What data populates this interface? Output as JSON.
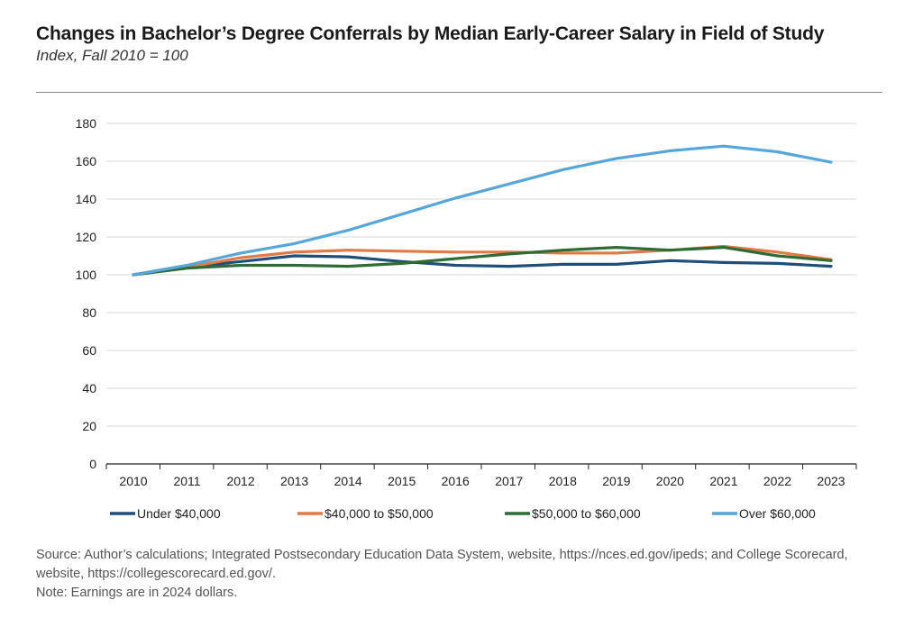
{
  "header": {
    "title": "Changes in Bachelor’s Degree Conferrals by Median Early-Career Salary in Field of Study",
    "subtitle": "Index, Fall 2010 = 100"
  },
  "footer": {
    "source": "Source: Author’s calculations; Integrated Postsecondary Education Data System, website, https://nces.ed.gov/ipeds; and College Scorecard, website, https://collegescorecard.ed.gov/.",
    "note": "Note: Earnings are in 2024 dollars."
  },
  "chart_data": {
    "type": "line",
    "title": "Changes in Bachelor’s Degree Conferrals by Median Early-Career Salary in Field of Study",
    "subtitle": "Index, Fall 2010 = 100",
    "xlabel": "",
    "ylabel": "",
    "x": [
      "2010",
      "2011",
      "2012",
      "2013",
      "2014",
      "2015",
      "2016",
      "2017",
      "2018",
      "2019",
      "2020",
      "2021",
      "2022",
      "2023"
    ],
    "ylim": [
      0,
      180
    ],
    "yticks": [
      0,
      20,
      40,
      60,
      80,
      100,
      120,
      140,
      160,
      180
    ],
    "grid": "horizontal",
    "legend_position": "bottom",
    "series": [
      {
        "name": "Under $40,000",
        "color": "#1f4e79",
        "values": [
          100,
          104,
          107,
          110,
          109.5,
          107,
          105,
          104.5,
          105.5,
          105.5,
          107.5,
          106.5,
          106,
          104.5
        ]
      },
      {
        "name": "$40,000 to $50,000",
        "color": "#e07b47",
        "values": [
          100,
          104,
          109,
          112,
          113,
          112.5,
          112,
          112,
          111.5,
          111.5,
          113,
          115,
          112,
          108
        ]
      },
      {
        "name": "$50,000 to $60,000",
        "color": "#2e6b35",
        "values": [
          100,
          103.5,
          105,
          105,
          104.5,
          106,
          108.5,
          111,
          113,
          114.5,
          113,
          114.5,
          110,
          107.5
        ]
      },
      {
        "name": "Over $60,000",
        "color": "#56a6d9",
        "values": [
          100,
          105,
          111.5,
          116.5,
          123.5,
          132,
          140.5,
          148,
          155.5,
          161.5,
          165.5,
          168,
          165,
          159.5
        ]
      }
    ]
  }
}
